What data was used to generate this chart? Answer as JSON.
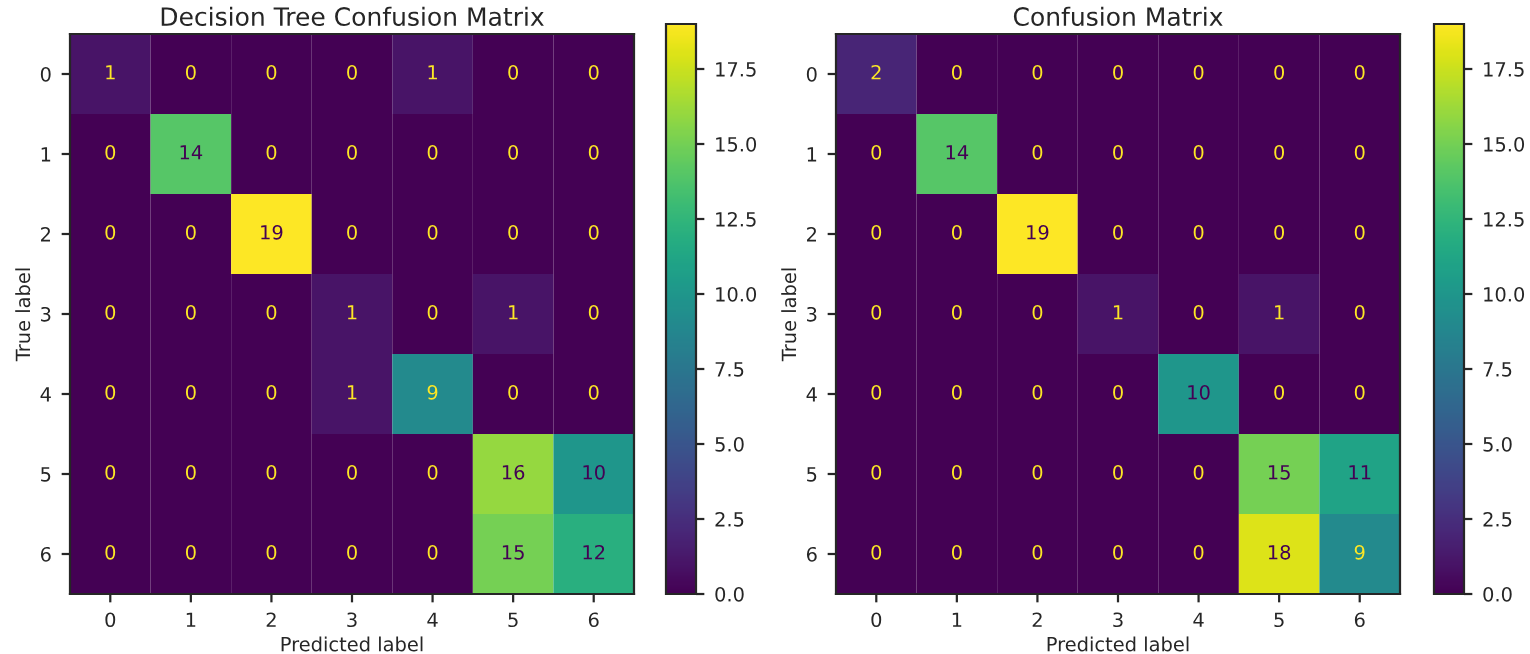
{
  "chart_data": [
    {
      "type": "heatmap",
      "title": "Decision Tree Confusion Matrix",
      "xlabel": "Predicted label",
      "ylabel": "True label",
      "categories": [
        "0",
        "1",
        "2",
        "3",
        "4",
        "5",
        "6"
      ],
      "y_categories": [
        "0",
        "1",
        "2",
        "3",
        "4",
        "5",
        "6"
      ],
      "cells": [
        [
          1,
          0,
          0,
          0,
          1,
          0,
          0
        ],
        [
          0,
          14,
          0,
          0,
          0,
          0,
          0
        ],
        [
          0,
          0,
          19,
          0,
          0,
          0,
          0
        ],
        [
          0,
          0,
          0,
          1,
          0,
          1,
          0
        ],
        [
          0,
          0,
          0,
          1,
          9,
          0,
          0
        ],
        [
          0,
          0,
          0,
          0,
          0,
          16,
          10
        ],
        [
          0,
          0,
          0,
          0,
          0,
          15,
          12
        ]
      ],
      "clim": [
        0,
        19
      ],
      "cticks": [
        {
          "value": 0,
          "label": "0.0"
        },
        {
          "value": 2.5,
          "label": "2.5"
        },
        {
          "value": 5,
          "label": "5.0"
        },
        {
          "value": 7.5,
          "label": "7.5"
        },
        {
          "value": 10,
          "label": "10.0"
        },
        {
          "value": 12.5,
          "label": "12.5"
        },
        {
          "value": 15,
          "label": "15.0"
        },
        {
          "value": 17.5,
          "label": "17.5"
        }
      ],
      "data_labels": true
    },
    {
      "type": "heatmap",
      "title": "Confusion Matrix",
      "xlabel": "Predicted label",
      "ylabel": "True label",
      "categories": [
        "0",
        "1",
        "2",
        "3",
        "4",
        "5",
        "6"
      ],
      "y_categories": [
        "0",
        "1",
        "2",
        "3",
        "4",
        "5",
        "6"
      ],
      "cells": [
        [
          2,
          0,
          0,
          0,
          0,
          0,
          0
        ],
        [
          0,
          14,
          0,
          0,
          0,
          0,
          0
        ],
        [
          0,
          0,
          19,
          0,
          0,
          0,
          0
        ],
        [
          0,
          0,
          0,
          1,
          0,
          1,
          0
        ],
        [
          0,
          0,
          0,
          0,
          10,
          0,
          0
        ],
        [
          0,
          0,
          0,
          0,
          0,
          15,
          11
        ],
        [
          0,
          0,
          0,
          0,
          0,
          18,
          9
        ]
      ],
      "clim": [
        0,
        19
      ],
      "cticks": [
        {
          "value": 0,
          "label": "0.0"
        },
        {
          "value": 2.5,
          "label": "2.5"
        },
        {
          "value": 5,
          "label": "5.0"
        },
        {
          "value": 7.5,
          "label": "7.5"
        },
        {
          "value": 10,
          "label": "10.0"
        },
        {
          "value": 12.5,
          "label": "12.5"
        },
        {
          "value": 15,
          "label": "15.0"
        },
        {
          "value": 17.5,
          "label": "17.5"
        }
      ],
      "data_labels": true
    }
  ]
}
